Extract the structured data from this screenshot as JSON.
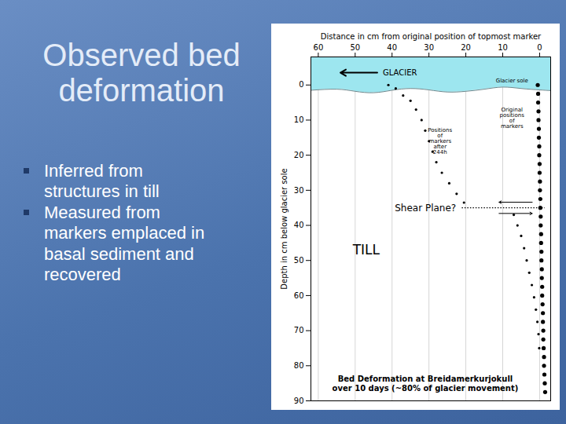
{
  "slide": {
    "title": "Observed bed deformation",
    "bullets": [
      "Inferred from structures in till",
      "Measured from markers emplaced in basal sediment and recovered"
    ]
  },
  "chart_data": {
    "type": "scatter",
    "x_label": "Distance in cm from original position of topmost marker",
    "y_label": "Depth in cm below glacier sole",
    "xlim": [
      62,
      -3
    ],
    "xticks": [
      60,
      50,
      40,
      30,
      20,
      10,
      0
    ],
    "ylim": [
      -8,
      90
    ],
    "yticks": [
      0,
      10,
      20,
      30,
      40,
      50,
      60,
      70,
      80,
      90
    ],
    "grid": true,
    "series": [
      {
        "name": "Glacier sole",
        "type": "area",
        "color": "#9de6ef",
        "x": [
          62,
          55,
          50,
          45,
          40,
          35,
          30,
          25,
          20,
          15,
          10,
          5,
          0,
          -3
        ],
        "values": [
          1.5,
          1.2,
          1.8,
          2.2,
          1.5,
          1,
          1.4,
          2,
          1.8,
          1.2,
          0.6,
          1,
          1.4,
          1.6
        ]
      },
      {
        "name": "Positions of markers after 244h",
        "type": "scatter",
        "marker": "circle",
        "color": "#000000",
        "x": [
          41,
          39,
          37,
          35,
          33.5,
          32,
          31,
          30,
          29,
          28,
          26.5,
          24.5,
          22.5,
          20.5,
          7,
          6,
          5,
          4.2,
          3.5,
          2.8,
          2.1,
          1.5,
          1,
          0.6,
          0.3,
          0.1
        ],
        "values": [
          0,
          1,
          3,
          4.5,
          7,
          10,
          13,
          16,
          19,
          22,
          25,
          28,
          31,
          33.5,
          37,
          40,
          43,
          46.5,
          50,
          53.5,
          57,
          60.5,
          64,
          67.5,
          71,
          75
        ]
      },
      {
        "name": "Original positions of markers",
        "type": "scatter",
        "marker": "circle",
        "color": "#000000",
        "x": [
          0.5,
          0.4,
          0.4,
          0.3,
          0.3,
          0.2,
          0.2,
          0.1,
          0.1,
          0,
          0,
          -0.1,
          -0.1,
          -0.2,
          -0.2,
          -0.3,
          -0.3,
          -0.4,
          -0.4,
          -0.5,
          -0.5,
          -0.6,
          -0.6,
          -0.7,
          -0.7,
          -0.8,
          -0.9,
          -0.9,
          -1,
          -1,
          -1.1,
          -1.2,
          -1.2,
          -1.3,
          -1.4,
          -1.5
        ],
        "values": [
          0,
          2.5,
          5,
          7.5,
          10,
          12.5,
          15,
          17.5,
          20,
          22.5,
          25,
          27.5,
          30,
          32.5,
          35,
          37.5,
          40,
          42.5,
          45,
          47.5,
          50,
          52.5,
          55,
          57.5,
          60,
          62.5,
          65,
          67.5,
          70,
          72.5,
          75,
          77.5,
          80,
          82.5,
          85,
          87.5
        ]
      }
    ],
    "shear_plane": {
      "label": "Shear Plane?",
      "depth": 35
    },
    "annotations": {
      "glacier": "GLACIER",
      "glacier_sole": "Glacier sole",
      "moved_markers": "Positions\nof\nmarkers\nafter\n244h",
      "original_markers": "Original\npositions\nof\nmarkers",
      "till": "TILL",
      "caption": "Bed Deformation at Breidamerkurjokull\nover 10 days (~80% of glacier movement)"
    }
  }
}
